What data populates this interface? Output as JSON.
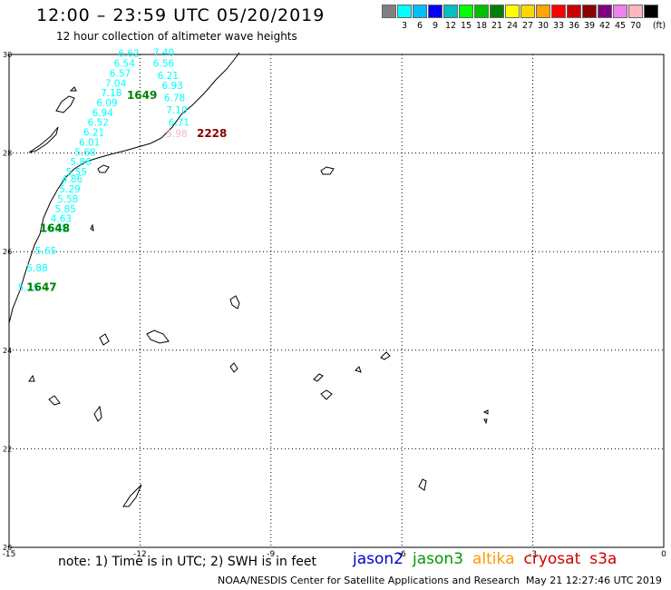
{
  "header": {
    "title": "12:00 – 23:59 UTC 05/20/2019",
    "subtitle": "12 hour collection of altimeter wave heights"
  },
  "legend": {
    "colors": [
      "#808080",
      "#00ffff",
      "#00bfff",
      "#0000ff",
      "#00c0c0",
      "#00ff00",
      "#00c000",
      "#008000",
      "#ffff00",
      "#ffd700",
      "#ffa500",
      "#ff0000",
      "#cc0000",
      "#8b0000",
      "#800080",
      "#ee82ee",
      "#ffb6c1",
      "#000000"
    ],
    "labels": [
      "3",
      "6",
      "9",
      "12",
      "15",
      "18",
      "21",
      "24",
      "27",
      "30",
      "33",
      "36",
      "39",
      "42",
      "45",
      "70"
    ],
    "unit": "(ft)"
  },
  "axes": {
    "x_labels": [
      "-15",
      "-12",
      "-9",
      "-6",
      "-3",
      "0"
    ],
    "y_labels": [
      "30",
      "28",
      "26",
      "24",
      "22",
      "20"
    ]
  },
  "swh_points": [
    {
      "lon": -14.8,
      "lat": 25.2,
      "v": "5.25",
      "color": "#00ffff"
    },
    {
      "lon": -14.6,
      "lat": 25.6,
      "v": "5.88",
      "color": "#00ffff"
    },
    {
      "lon": -14.4,
      "lat": 25.95,
      "v": "5.65",
      "color": "#00ffff"
    },
    {
      "lon": -14.15,
      "lat": 26.4,
      "v": "4.95",
      "color": "#00ffff"
    },
    {
      "lon": -14.05,
      "lat": 26.6,
      "v": "4.63",
      "color": "#00ffff"
    },
    {
      "lon": -13.95,
      "lat": 26.8,
      "v": "5.85",
      "color": "#00ffff"
    },
    {
      "lon": -13.9,
      "lat": 27.0,
      "v": "5.58",
      "color": "#00ffff"
    },
    {
      "lon": -13.85,
      "lat": 27.2,
      "v": "5.29",
      "color": "#00ffff"
    },
    {
      "lon": -13.8,
      "lat": 27.4,
      "v": "4.86",
      "color": "#00ffff"
    },
    {
      "lon": -13.7,
      "lat": 27.55,
      "v": "5.55",
      "color": "#00ffff"
    },
    {
      "lon": -13.6,
      "lat": 27.75,
      "v": "5.86",
      "color": "#00ffff"
    },
    {
      "lon": -13.5,
      "lat": 27.95,
      "v": "5.68",
      "color": "#00ffff"
    },
    {
      "lon": -13.4,
      "lat": 28.15,
      "v": "6.01",
      "color": "#00ffff"
    },
    {
      "lon": -13.3,
      "lat": 28.35,
      "v": "6.21",
      "color": "#00ffff"
    },
    {
      "lon": -13.2,
      "lat": 28.55,
      "v": "6.52",
      "color": "#00ffff"
    },
    {
      "lon": -13.1,
      "lat": 28.75,
      "v": "6.94",
      "color": "#00ffff"
    },
    {
      "lon": -13.0,
      "lat": 28.95,
      "v": "6.09",
      "color": "#00ffff"
    },
    {
      "lon": -12.9,
      "lat": 29.15,
      "v": "7.18",
      "color": "#00ffff"
    },
    {
      "lon": -12.8,
      "lat": 29.35,
      "v": "7.04",
      "color": "#00ffff"
    },
    {
      "lon": -12.7,
      "lat": 29.55,
      "v": "6.57",
      "color": "#00ffff"
    },
    {
      "lon": -12.6,
      "lat": 29.75,
      "v": "6.54",
      "color": "#00ffff"
    },
    {
      "lon": -12.5,
      "lat": 29.95,
      "v": "6.62",
      "color": "#00ffff"
    },
    {
      "lon": -11.7,
      "lat": 29.97,
      "v": "7.40",
      "color": "#00ffff"
    },
    {
      "lon": -11.7,
      "lat": 29.75,
      "v": "6.56",
      "color": "#00ffff"
    },
    {
      "lon": -11.6,
      "lat": 29.5,
      "v": "6.21",
      "color": "#00ffff"
    },
    {
      "lon": -11.5,
      "lat": 29.3,
      "v": "6.93",
      "color": "#00ffff"
    },
    {
      "lon": -11.45,
      "lat": 29.05,
      "v": "6.78",
      "color": "#00ffff"
    },
    {
      "lon": -11.4,
      "lat": 28.8,
      "v": "7.10",
      "color": "#00ffff"
    },
    {
      "lon": -11.35,
      "lat": 28.55,
      "v": "6.71",
      "color": "#00ffff"
    },
    {
      "lon": -11.4,
      "lat": 28.32,
      "v": "5.98",
      "color": "#ffb6c1"
    }
  ],
  "time_labels": [
    {
      "lon": -12.3,
      "lat": 29.1,
      "v": "1649",
      "color": "#008000"
    },
    {
      "lon": -14.3,
      "lat": 26.4,
      "v": "1648",
      "color": "#008000"
    },
    {
      "lon": -14.6,
      "lat": 25.2,
      "v": "1647",
      "color": "#008000"
    },
    {
      "lon": -10.7,
      "lat": 28.32,
      "v": "2228",
      "color": "#8b0000"
    }
  ],
  "footer": {
    "note": "note: 1) Time is in UTC; 2) SWH is in feet",
    "credit": "NOAA/NESDIS Center for Satellite Applications and Research",
    "timestamp": "May 21 12:27:46 UTC 2019"
  },
  "satellites": [
    {
      "name": "jason2",
      "color": "#0000cc"
    },
    {
      "name": "jason3",
      "color": "#009900"
    },
    {
      "name": "altika",
      "color": "#ff9900"
    },
    {
      "name": "cryosat",
      "color": "#cc0000"
    },
    {
      "name": "s3a",
      "color": "#cc0000"
    }
  ]
}
